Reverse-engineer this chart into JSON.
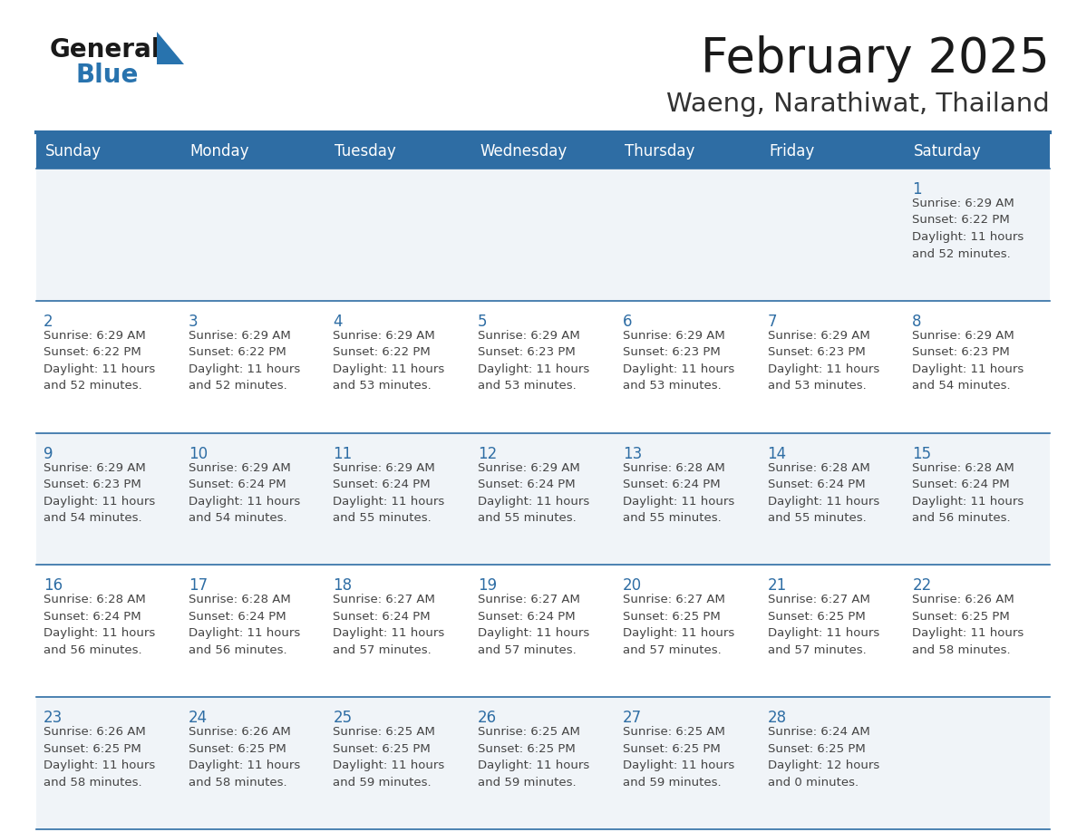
{
  "title": "February 2025",
  "subtitle": "Waeng, Narathiwat, Thailand",
  "header_bg": "#2E6DA4",
  "header_text_color": "#FFFFFF",
  "cell_bg_even": "#F0F4F8",
  "cell_bg_odd": "#FFFFFF",
  "grid_color": "#2E6DA4",
  "text_color": "#444444",
  "date_color": "#2E6DA4",
  "logo_general_color": "#1a1a1a",
  "logo_blue_color": "#2873AE",
  "day_headers": [
    "Sunday",
    "Monday",
    "Tuesday",
    "Wednesday",
    "Thursday",
    "Friday",
    "Saturday"
  ],
  "weeks": [
    {
      "days": [
        null,
        null,
        null,
        null,
        null,
        null,
        1
      ],
      "data": [
        null,
        null,
        null,
        null,
        null,
        null,
        {
          "sunrise": "6:29 AM",
          "sunset": "6:22 PM",
          "daylight1": "11 hours",
          "daylight2": "and 52 minutes."
        }
      ]
    },
    {
      "days": [
        2,
        3,
        4,
        5,
        6,
        7,
        8
      ],
      "data": [
        {
          "sunrise": "6:29 AM",
          "sunset": "6:22 PM",
          "daylight1": "11 hours",
          "daylight2": "and 52 minutes."
        },
        {
          "sunrise": "6:29 AM",
          "sunset": "6:22 PM",
          "daylight1": "11 hours",
          "daylight2": "and 52 minutes."
        },
        {
          "sunrise": "6:29 AM",
          "sunset": "6:22 PM",
          "daylight1": "11 hours",
          "daylight2": "and 53 minutes."
        },
        {
          "sunrise": "6:29 AM",
          "sunset": "6:23 PM",
          "daylight1": "11 hours",
          "daylight2": "and 53 minutes."
        },
        {
          "sunrise": "6:29 AM",
          "sunset": "6:23 PM",
          "daylight1": "11 hours",
          "daylight2": "and 53 minutes."
        },
        {
          "sunrise": "6:29 AM",
          "sunset": "6:23 PM",
          "daylight1": "11 hours",
          "daylight2": "and 53 minutes."
        },
        {
          "sunrise": "6:29 AM",
          "sunset": "6:23 PM",
          "daylight1": "11 hours",
          "daylight2": "and 54 minutes."
        }
      ]
    },
    {
      "days": [
        9,
        10,
        11,
        12,
        13,
        14,
        15
      ],
      "data": [
        {
          "sunrise": "6:29 AM",
          "sunset": "6:23 PM",
          "daylight1": "11 hours",
          "daylight2": "and 54 minutes."
        },
        {
          "sunrise": "6:29 AM",
          "sunset": "6:24 PM",
          "daylight1": "11 hours",
          "daylight2": "and 54 minutes."
        },
        {
          "sunrise": "6:29 AM",
          "sunset": "6:24 PM",
          "daylight1": "11 hours",
          "daylight2": "and 55 minutes."
        },
        {
          "sunrise": "6:29 AM",
          "sunset": "6:24 PM",
          "daylight1": "11 hours",
          "daylight2": "and 55 minutes."
        },
        {
          "sunrise": "6:28 AM",
          "sunset": "6:24 PM",
          "daylight1": "11 hours",
          "daylight2": "and 55 minutes."
        },
        {
          "sunrise": "6:28 AM",
          "sunset": "6:24 PM",
          "daylight1": "11 hours",
          "daylight2": "and 55 minutes."
        },
        {
          "sunrise": "6:28 AM",
          "sunset": "6:24 PM",
          "daylight1": "11 hours",
          "daylight2": "and 56 minutes."
        }
      ]
    },
    {
      "days": [
        16,
        17,
        18,
        19,
        20,
        21,
        22
      ],
      "data": [
        {
          "sunrise": "6:28 AM",
          "sunset": "6:24 PM",
          "daylight1": "11 hours",
          "daylight2": "and 56 minutes."
        },
        {
          "sunrise": "6:28 AM",
          "sunset": "6:24 PM",
          "daylight1": "11 hours",
          "daylight2": "and 56 minutes."
        },
        {
          "sunrise": "6:27 AM",
          "sunset": "6:24 PM",
          "daylight1": "11 hours",
          "daylight2": "and 57 minutes."
        },
        {
          "sunrise": "6:27 AM",
          "sunset": "6:24 PM",
          "daylight1": "11 hours",
          "daylight2": "and 57 minutes."
        },
        {
          "sunrise": "6:27 AM",
          "sunset": "6:25 PM",
          "daylight1": "11 hours",
          "daylight2": "and 57 minutes."
        },
        {
          "sunrise": "6:27 AM",
          "sunset": "6:25 PM",
          "daylight1": "11 hours",
          "daylight2": "and 57 minutes."
        },
        {
          "sunrise": "6:26 AM",
          "sunset": "6:25 PM",
          "daylight1": "11 hours",
          "daylight2": "and 58 minutes."
        }
      ]
    },
    {
      "days": [
        23,
        24,
        25,
        26,
        27,
        28,
        null
      ],
      "data": [
        {
          "sunrise": "6:26 AM",
          "sunset": "6:25 PM",
          "daylight1": "11 hours",
          "daylight2": "and 58 minutes."
        },
        {
          "sunrise": "6:26 AM",
          "sunset": "6:25 PM",
          "daylight1": "11 hours",
          "daylight2": "and 58 minutes."
        },
        {
          "sunrise": "6:25 AM",
          "sunset": "6:25 PM",
          "daylight1": "11 hours",
          "daylight2": "and 59 minutes."
        },
        {
          "sunrise": "6:25 AM",
          "sunset": "6:25 PM",
          "daylight1": "11 hours",
          "daylight2": "and 59 minutes."
        },
        {
          "sunrise": "6:25 AM",
          "sunset": "6:25 PM",
          "daylight1": "11 hours",
          "daylight2": "and 59 minutes."
        },
        {
          "sunrise": "6:24 AM",
          "sunset": "6:25 PM",
          "daylight1": "12 hours",
          "daylight2": "and 0 minutes."
        },
        null
      ]
    }
  ]
}
